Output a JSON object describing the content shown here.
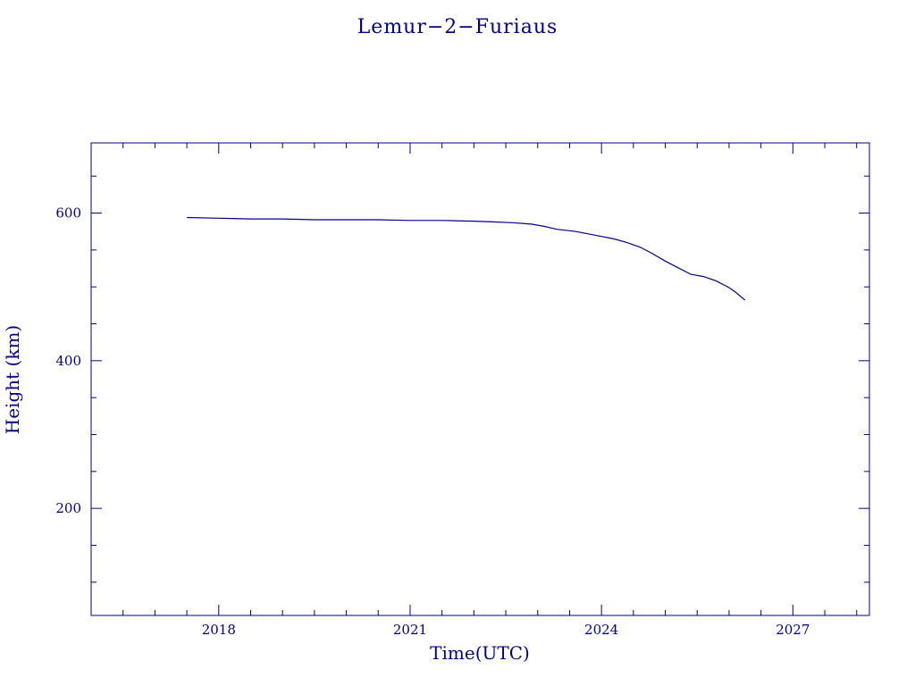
{
  "chart_data": {
    "type": "line",
    "title": "Lemur−2−Furiaus",
    "xlabel": "Time(UTC)",
    "ylabel": "Height (km)",
    "xlim": [
      2016.0,
      2028.2
    ],
    "ylim": [
      55,
      695
    ],
    "x_ticks": [
      2018,
      2021,
      2024,
      2027
    ],
    "x_tick_labels": [
      "2018",
      "2021",
      "2024",
      "2027"
    ],
    "x_minor_ticks": [
      2016.5,
      2017,
      2017.5,
      2018.5,
      2019,
      2019.5,
      2020,
      2020.5,
      2021.5,
      2022,
      2022.5,
      2023,
      2023.5,
      2024.5,
      2025,
      2025.5,
      2026,
      2026.5,
      2027.5,
      2028
    ],
    "y_ticks": [
      200,
      400,
      600
    ],
    "y_tick_labels": [
      "200",
      "400",
      "600"
    ],
    "y_minor_ticks": [
      100,
      150,
      250,
      300,
      350,
      450,
      500,
      550,
      650
    ],
    "grid": false,
    "color": "#00008b",
    "series": [
      {
        "x": [
          2017.5,
          2018.0,
          2018.5,
          2019.0,
          2019.5,
          2020.0,
          2020.5,
          2021.0,
          2021.5,
          2022.0,
          2022.3,
          2022.6,
          2022.9,
          2023.1,
          2023.3,
          2023.6,
          2023.9,
          2024.2,
          2024.4,
          2024.6,
          2024.8,
          2025.0,
          2025.2,
          2025.4,
          2025.6,
          2025.8,
          2026.0,
          2026.1,
          2026.25
        ],
        "y": [
          594,
          593,
          592,
          592,
          591,
          591,
          591,
          590,
          590,
          589,
          588,
          587,
          585,
          582,
          578,
          575,
          570,
          565,
          560,
          554,
          545,
          535,
          526,
          517,
          514,
          508,
          499,
          493,
          482
        ]
      }
    ]
  }
}
